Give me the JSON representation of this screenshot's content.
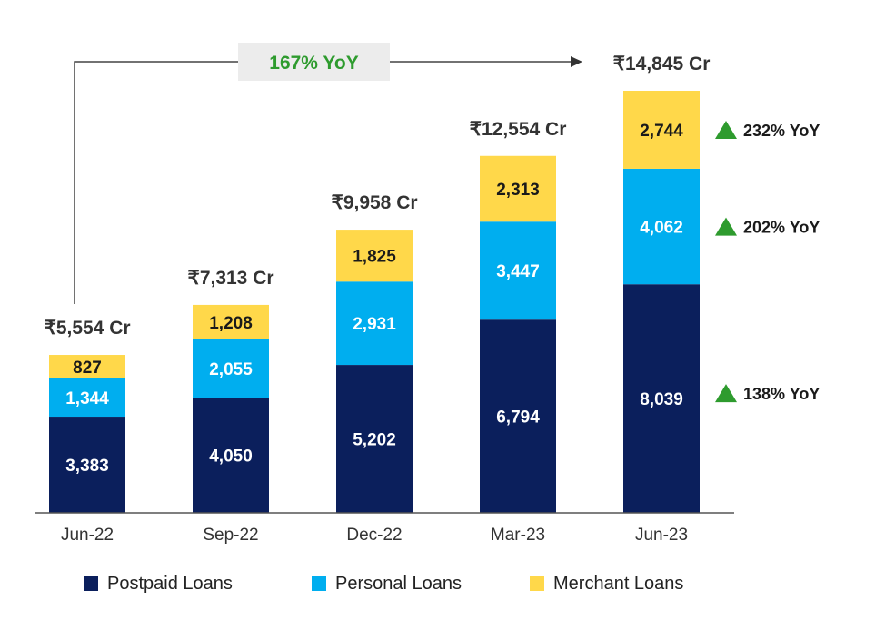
{
  "chart_data": {
    "type": "bar",
    "stacked": true,
    "categories": [
      "Jun-22",
      "Sep-22",
      "Dec-22",
      "Mar-23",
      "Jun-23"
    ],
    "series": [
      {
        "name": "Postpaid Loans",
        "color": "#0b1f5c",
        "values": [
          3383,
          4050,
          5202,
          6794,
          8039
        ],
        "labels": [
          "3,383",
          "4,050",
          "5,202",
          "6,794",
          "8,039"
        ],
        "yoy": "138% YoY"
      },
      {
        "name": "Personal Loans",
        "color": "#00aeef",
        "values": [
          1344,
          2055,
          2931,
          3447,
          4062
        ],
        "labels": [
          "1,344",
          "2,055",
          "2,931",
          "3,447",
          "4,062"
        ],
        "yoy": "202% YoY"
      },
      {
        "name": "Merchant Loans",
        "color": "#ffd84a",
        "values": [
          827,
          1208,
          1825,
          2313,
          2744
        ],
        "labels": [
          "827",
          "1,208",
          "1,825",
          "2,313",
          "2,744"
        ],
        "yoy": "232% YoY"
      }
    ],
    "totals": [
      "₹5,554 Cr",
      "₹7,313 Cr",
      "₹9,958 Cr",
      "₹12,554 Cr",
      "₹14,845 Cr"
    ],
    "total_values": [
      5554,
      7313,
      9958,
      12554,
      14845
    ],
    "headline_growth": "167% YoY",
    "yoy_marker_color": "#2e9b2e",
    "legend_position": "bottom",
    "grid": false,
    "ylim": [
      0,
      15000
    ]
  }
}
